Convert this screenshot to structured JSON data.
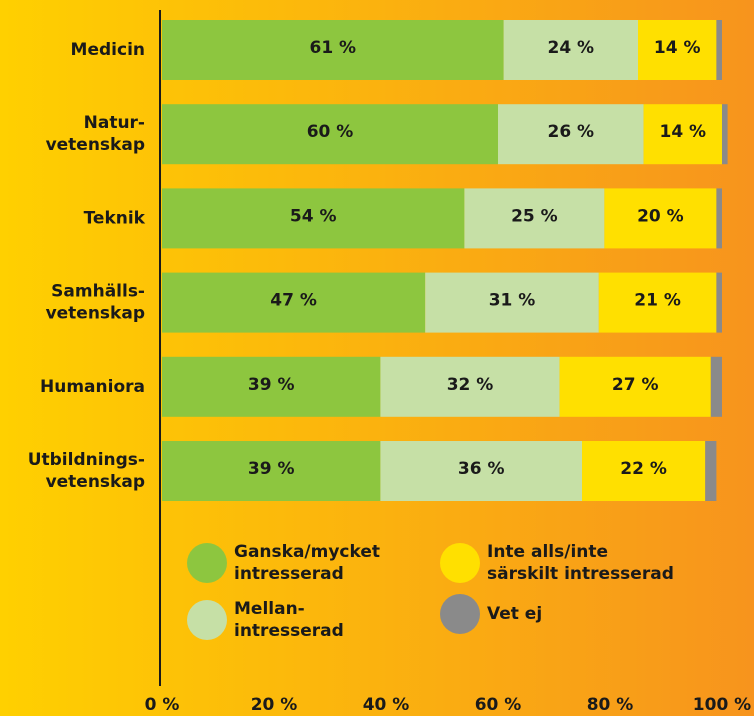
{
  "chart_data": {
    "type": "stacked-barh",
    "categories": [
      "Medicin",
      "Natur-\nvetenskap",
      "Teknik",
      "Samhälls-\nvetenskap",
      "Humaniora",
      "Utbildnings-\nvetenskap"
    ],
    "series": [
      {
        "name": "Ganska/mycket\nintresserad",
        "color": "#8dc63f",
        "values": [
          61,
          60,
          54,
          47,
          39,
          39
        ],
        "value_labels": [
          "61 %",
          "60 %",
          "54 %",
          "47 %",
          "39 %",
          "39 %"
        ]
      },
      {
        "name": "Mellan-\nintresserad",
        "color": "#c6e0a6",
        "values": [
          24,
          26,
          25,
          31,
          32,
          36
        ],
        "value_labels": [
          "24 %",
          "26 %",
          "25 %",
          "31 %",
          "32 %",
          "36 %"
        ]
      },
      {
        "name": "Inte alls/inte\nsärskilt intresserad",
        "color": "#ffe000",
        "values": [
          14,
          14,
          20,
          21,
          27,
          22
        ],
        "value_labels": [
          "14 %",
          "14 %",
          "20 %",
          "21 %",
          "27 %",
          "22 %"
        ]
      },
      {
        "name": "Vet ej",
        "color": "#8a8a8a",
        "values": [
          1,
          1,
          1,
          1,
          2,
          2
        ]
      }
    ],
    "xlim": [
      0,
      100
    ],
    "xticks": [
      {
        "value": 0,
        "label": "0 %"
      },
      {
        "value": 20,
        "label": "20 %"
      },
      {
        "value": 40,
        "label": "40 %"
      },
      {
        "value": 60,
        "label": "60 %"
      },
      {
        "value": 80,
        "label": "80 %"
      },
      {
        "value": 100,
        "label": "100 %"
      }
    ]
  }
}
